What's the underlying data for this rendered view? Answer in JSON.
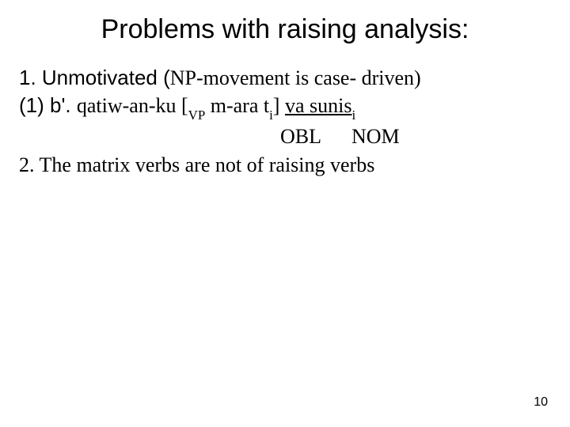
{
  "slide": {
    "title": "Problems with raising analysis:",
    "line1_a": "1. Unmotivated (",
    "line1_b": "NP-movement is case- driven)",
    "line2_a": "(1) b'. ",
    "line2_b": "qatiw-an-ku [",
    "line2_vp": "VP",
    "line2_c": " m-ara    t",
    "line2_ti": "i",
    "line2_d": "]  ",
    "line2_e": "va sunis",
    "line2_ei": "i",
    "gloss_obl": "OBL",
    "gloss_nom": "NOM",
    "line3": "2. The matrix verbs are not of raising verbs",
    "page_number": "10",
    "colors": {
      "background": "#ffffff",
      "text": "#000000"
    },
    "fonts": {
      "title_family": "Arial",
      "title_size_pt": 26,
      "body_family": "Times New Roman",
      "body_size_pt": 20
    }
  }
}
